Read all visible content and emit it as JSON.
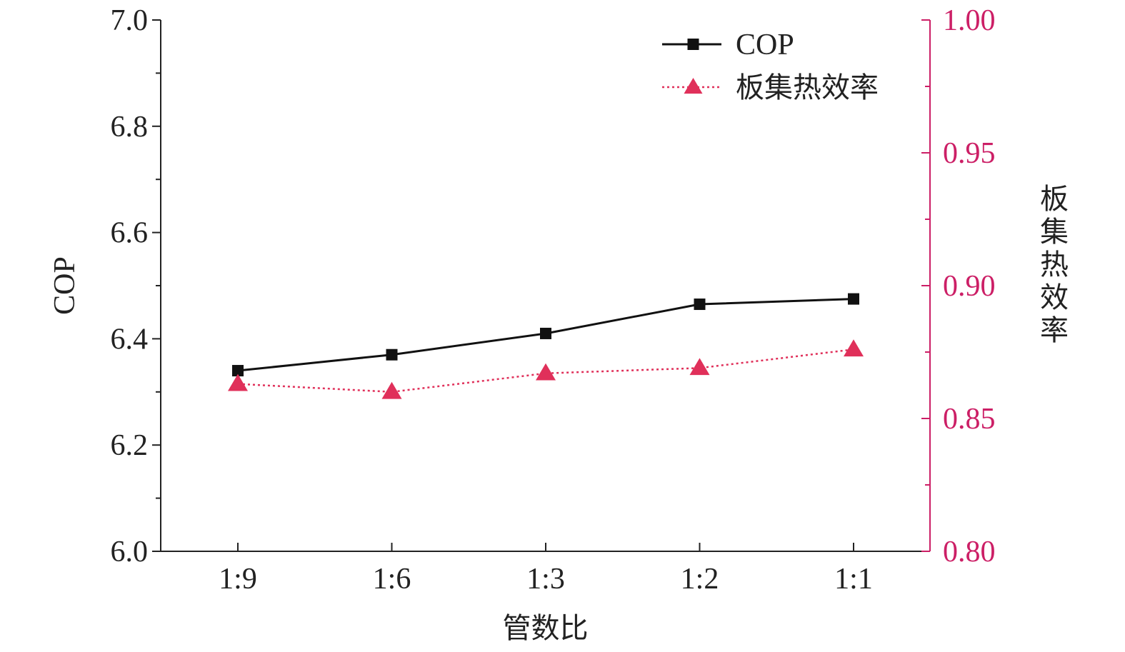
{
  "chart_data": {
    "type": "line",
    "categories": [
      "1:9",
      "1:6",
      "1:3",
      "1:2",
      "1:1"
    ],
    "xlabel": "管数比",
    "ylabel": "COP",
    "ylabel_right": "板集热效率",
    "ylim": [
      6.0,
      7.0
    ],
    "ylim_right": [
      0.8,
      1.0
    ],
    "yticks": [
      "6.0",
      "6.2",
      "6.4",
      "6.6",
      "6.8",
      "7.0"
    ],
    "yticks_right": [
      "0.80",
      "0.85",
      "0.90",
      "0.95",
      "1.00"
    ],
    "grid": false,
    "legend_position": "top-right",
    "series": [
      {
        "name": "COP",
        "axis": "left",
        "marker": "square",
        "line_style": "solid",
        "color": "#111111",
        "values": [
          6.34,
          6.37,
          6.41,
          6.465,
          6.475
        ]
      },
      {
        "name": "板集热效率",
        "axis": "right",
        "marker": "triangle",
        "line_style": "dotted",
        "color": "#e0305a",
        "values": [
          0.863,
          0.86,
          0.867,
          0.869,
          0.876
        ]
      }
    ],
    "colors": {
      "axis": "#222222",
      "right_axis": "#cc1f66"
    }
  }
}
